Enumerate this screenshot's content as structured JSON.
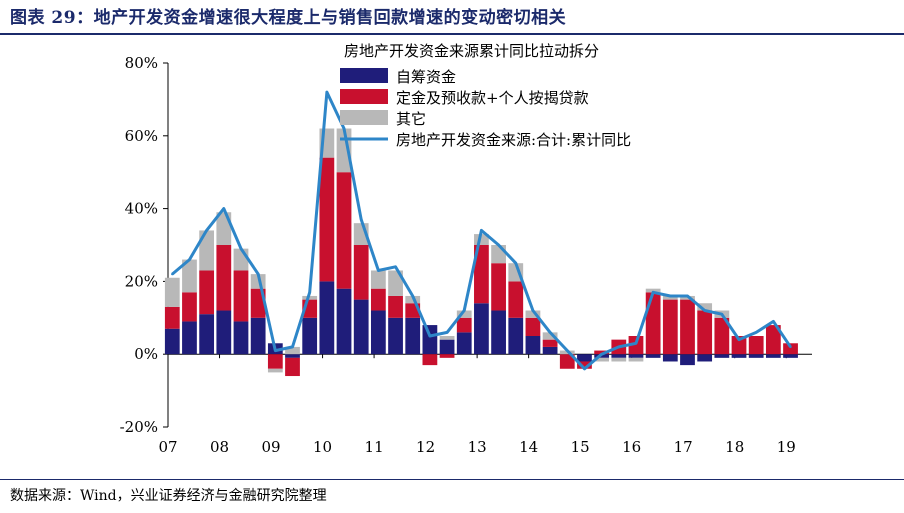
{
  "figure": {
    "title": "图表 29：地产开发资金增速很大程度上与销售回款增速的变动密切相关",
    "source": "数据来源：Wind，兴业证券经济与金融研究院整理"
  },
  "colors": {
    "self_raised": "#1f1d7a",
    "deposits": "#c8102e",
    "other": "#b8b8b8",
    "total_line": "#2e86c8",
    "title": "#1b2a6b"
  },
  "chart_data": {
    "type": "bar",
    "stacked": true,
    "title": "房地产开发资金来源累计同比拉动拆分",
    "xlabel": "",
    "ylabel": "",
    "ylim": [
      -20,
      80
    ],
    "y_ticks": [
      "-20%",
      "0%",
      "20%",
      "40%",
      "60%",
      "80%"
    ],
    "y_tick_values": [
      -20,
      0,
      20,
      40,
      60,
      80
    ],
    "x_tick_labels": [
      "07",
      "08",
      "09",
      "10",
      "11",
      "12",
      "13",
      "14",
      "15",
      "16",
      "17",
      "18",
      "19"
    ],
    "legend_position": "top-center",
    "grid": false,
    "x_dates": [
      "2007-02",
      "2007-06",
      "2007-10",
      "2008-02",
      "2008-06",
      "2008-10",
      "2009-02",
      "2009-06",
      "2009-10",
      "2010-02",
      "2010-06",
      "2010-10",
      "2011-02",
      "2011-06",
      "2011-10",
      "2012-02",
      "2012-06",
      "2012-10",
      "2013-02",
      "2013-06",
      "2013-10",
      "2014-02",
      "2014-06",
      "2014-10",
      "2015-02",
      "2015-06",
      "2015-10",
      "2016-02",
      "2016-06",
      "2016-10",
      "2017-02",
      "2017-06",
      "2017-10",
      "2018-02",
      "2018-06",
      "2018-10",
      "2019-02"
    ],
    "series": [
      {
        "name": "自筹资金",
        "kind": "bar",
        "values": [
          7,
          9,
          11,
          12,
          9,
          10,
          3,
          -1,
          10,
          20,
          18,
          15,
          12,
          10,
          10,
          8,
          4,
          6,
          14,
          12,
          10,
          5,
          2,
          0,
          -2,
          -1,
          -1,
          -1,
          -1,
          -2,
          -3,
          -2,
          -1,
          -1,
          -1,
          -1,
          -1
        ]
      },
      {
        "name": "定金及预收款+个人按揭贷款",
        "kind": "bar",
        "values": [
          6,
          8,
          12,
          18,
          14,
          8,
          -4,
          -5,
          5,
          34,
          32,
          15,
          6,
          6,
          4,
          -3,
          -1,
          4,
          16,
          13,
          10,
          5,
          2,
          -4,
          -2,
          1,
          4,
          5,
          17,
          15,
          15,
          12,
          10,
          5,
          5,
          8,
          3
        ]
      },
      {
        "name": "其它",
        "kind": "bar",
        "values": [
          8,
          9,
          11,
          9,
          6,
          4,
          -1,
          2,
          1,
          8,
          12,
          6,
          5,
          7,
          2,
          0,
          1,
          2,
          3,
          5,
          5,
          2,
          2,
          1,
          0,
          -1,
          -1,
          -1,
          1,
          1,
          1,
          2,
          2,
          0,
          0,
          0,
          0
        ]
      },
      {
        "name": "房地产开发资金来源:合计:累计同比",
        "kind": "line",
        "values": [
          22,
          26,
          34,
          40,
          29,
          22,
          1,
          2,
          17,
          72,
          62,
          37,
          23,
          24,
          16,
          5,
          6,
          12,
          34,
          30,
          25,
          12,
          6,
          1,
          -4,
          0,
          2,
          3,
          17,
          16,
          16,
          12,
          11,
          4,
          6,
          9,
          2
        ]
      }
    ]
  }
}
